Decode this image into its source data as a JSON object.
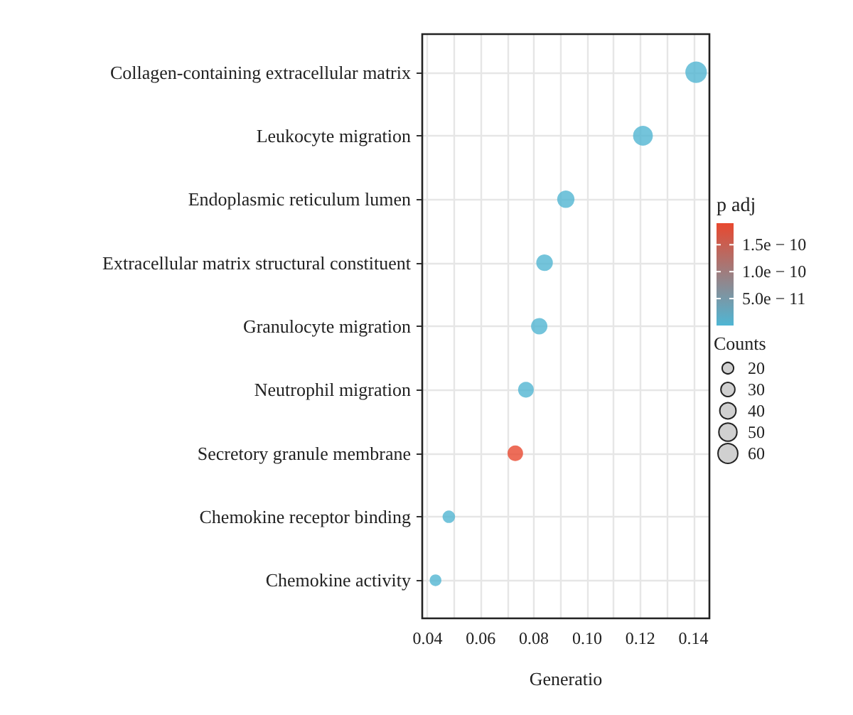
{
  "chart_data": {
    "type": "bubble",
    "xlabel": "Generatio",
    "clabel": "p adj",
    "legend_title": "Counts",
    "categories": [
      "Collagen-containing extracellular matrix",
      "Leukocyte migration",
      "Endoplasmic reticulum lumen",
      "Extracellular matrix structural constituent",
      "Granulocyte migration",
      "Neutrophil migration",
      "Secretory granule membrane",
      "Chemokine receptor binding",
      "Chemokine activity"
    ],
    "series": [
      {
        "values": [
          0.141,
          0.121,
          0.092,
          0.084,
          0.082,
          0.077,
          0.073,
          0.048,
          0.043
        ],
        "sizes": [
          71,
          60,
          46,
          42,
          41,
          38,
          37,
          24,
          21
        ],
        "cvalues": [
          2e-12,
          2e-12,
          2e-12,
          2e-12,
          2e-12,
          2e-12,
          1.9e-10,
          2e-12,
          2e-12
        ]
      }
    ],
    "orientation": "horizontal",
    "xlim": [
      0.038,
      0.146
    ],
    "xticks": [
      0.04,
      {
        "value": 0.05,
        "label": null
      },
      0.06,
      {
        "value": 0.07,
        "label": null
      },
      0.08,
      {
        "value": 0.09,
        "label": null
      },
      {
        "value": 0.1,
        "label": "0.10"
      },
      {
        "value": 0.11,
        "label": null
      },
      0.12,
      {
        "value": 0.13,
        "label": null
      },
      0.14
    ],
    "size_legend": [
      20,
      30,
      40,
      50,
      60
    ],
    "clim": [
      0,
      1.9e-10
    ],
    "cticks": [
      {
        "value": 5e-11,
        "label": "5.0e − 11"
      },
      {
        "value": 1e-10,
        "label": "1.0e − 10"
      },
      {
        "value": 1.5e-10,
        "label": "1.5e − 10"
      }
    ],
    "colors": [
      "#4fb6d4",
      "#e8482f"
    ],
    "grid": true
  }
}
